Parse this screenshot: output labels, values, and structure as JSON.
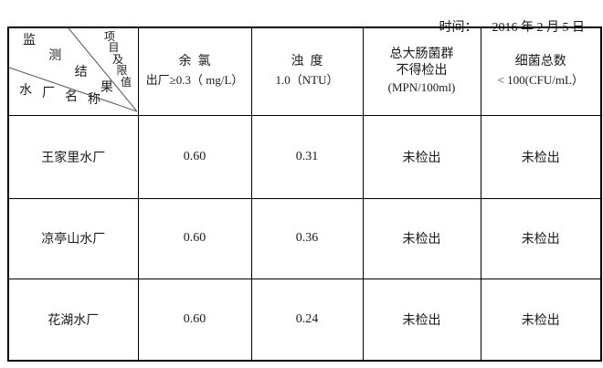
{
  "meta": {
    "time_label": "时间：",
    "date": "2016 年 2 月 5 日"
  },
  "table": {
    "corner": {
      "monitor_result": "监测结果",
      "item_limit": "项目及限值",
      "plant_name": "水厂名称"
    },
    "columns": [
      {
        "name": "余  氯",
        "limit": "出厂≥0.3（ mg/L）"
      },
      {
        "name": "浊  度",
        "limit": "1.0（NTU）"
      },
      {
        "name": "总大肠菌群",
        "limit": "不得检出",
        "unit": "(MPN/100ml)"
      },
      {
        "name": "细菌总数",
        "limit": "< 100(CFU/mL）"
      }
    ],
    "rows": [
      {
        "plant": "王家里水厂",
        "chlorine": "0.60",
        "turbidity": "0.31",
        "coliform": "未检出",
        "bacteria": "未检出"
      },
      {
        "plant": "凉亭山水厂",
        "chlorine": "0.60",
        "turbidity": "0.36",
        "coliform": "未检出",
        "bacteria": "未检出"
      },
      {
        "plant": "花湖水厂",
        "chlorine": "0.60",
        "turbidity": "0.24",
        "coliform": "未检出",
        "bacteria": "未检出"
      }
    ]
  },
  "colors": {
    "border": "#000000",
    "text": "#1a1a1a",
    "diagonal_line": "#555555"
  }
}
